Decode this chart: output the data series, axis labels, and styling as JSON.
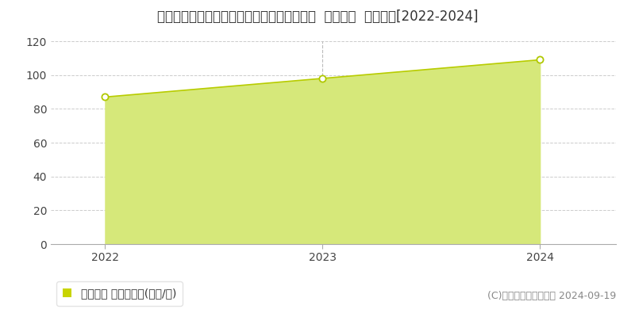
{
  "title": "千葉県流山市おおたかの森北２丁目４４番６  基準地価  地価推移[2022-2024]",
  "years": [
    2022,
    2023,
    2024
  ],
  "values": [
    87,
    98,
    109
  ],
  "ylim": [
    0,
    120
  ],
  "yticks": [
    0,
    20,
    40,
    60,
    80,
    100,
    120
  ],
  "line_color": "#b8cc00",
  "fill_color": "#d6e87a",
  "fill_alpha": 1.0,
  "marker_facecolor": "#ffffff",
  "marker_edgecolor": "#b0c800",
  "background_color": "#ffffff",
  "plot_bg_color": "#ffffff",
  "grid_color": "#cccccc",
  "vline_color": "#bbbbbb",
  "legend_label": "基準地価 平均坪単価(万円/坪)",
  "legend_square_color": "#c8d400",
  "copyright_text": "(C)土地価格ドットコム 2024-09-19",
  "title_fontsize": 12,
  "tick_fontsize": 10,
  "legend_fontsize": 10,
  "copyright_fontsize": 9,
  "spine_color": "#aaaaaa",
  "text_color": "#444444"
}
